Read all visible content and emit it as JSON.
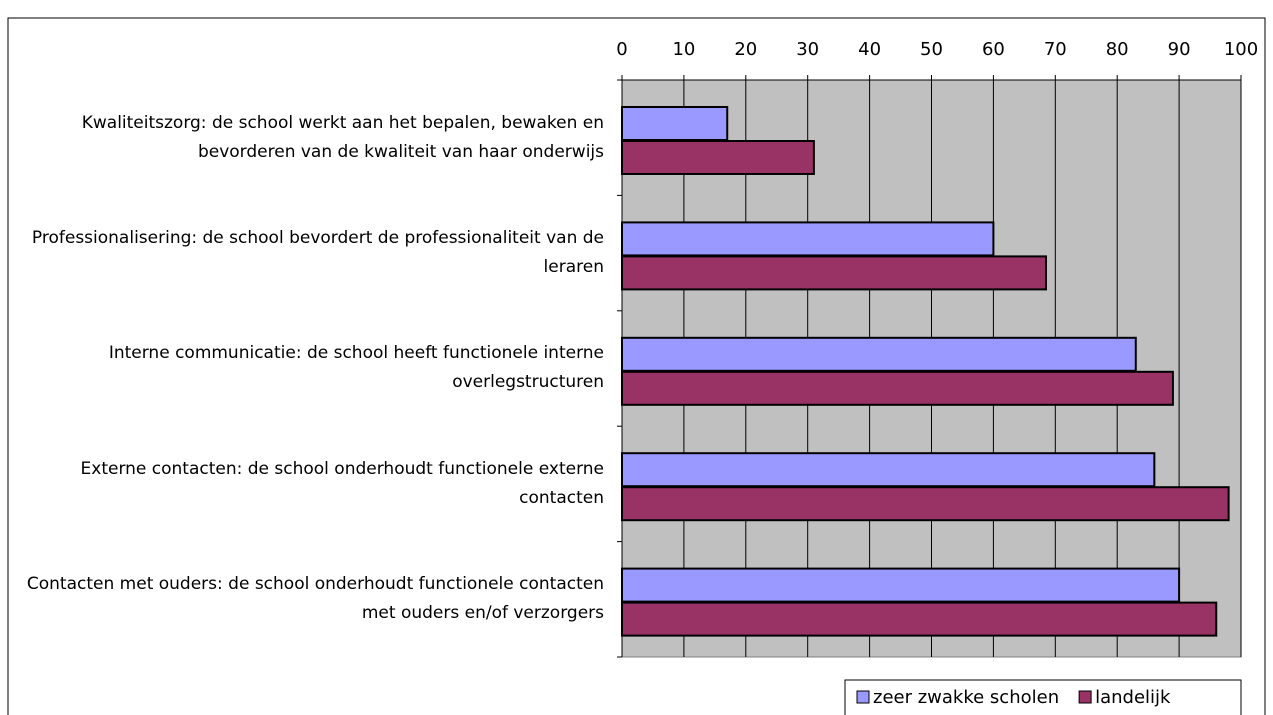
{
  "chart_data": {
    "type": "barh",
    "categories": [
      "Kwaliteitszorg: de school werkt aan het bepalen, bewaken en bevorderen van de kwaliteit van haar onderwijs",
      "Professionalisering: de school bevordert de professionaliteit van de leraren",
      "Interne communicatie: de school heeft functionele interne overlegstructuren",
      "Externe contacten: de school onderhoudt functionele externe contacten",
      "Contacten met ouders: de school onderhoudt functionele contacten met ouders en/of verzorgers"
    ],
    "series": [
      {
        "name": "zeer zwakke scholen",
        "color": "#9999ff",
        "values": [
          17,
          60,
          83,
          86,
          90
        ]
      },
      {
        "name": "landelijk",
        "color": "#993366",
        "values": [
          31,
          68.5,
          89,
          98,
          96
        ]
      }
    ],
    "xlim": [
      0,
      100
    ],
    "xticks": [
      0,
      10,
      20,
      30,
      40,
      50,
      60,
      70,
      80,
      90,
      100
    ],
    "grid": true,
    "legend": "bottom-right"
  }
}
